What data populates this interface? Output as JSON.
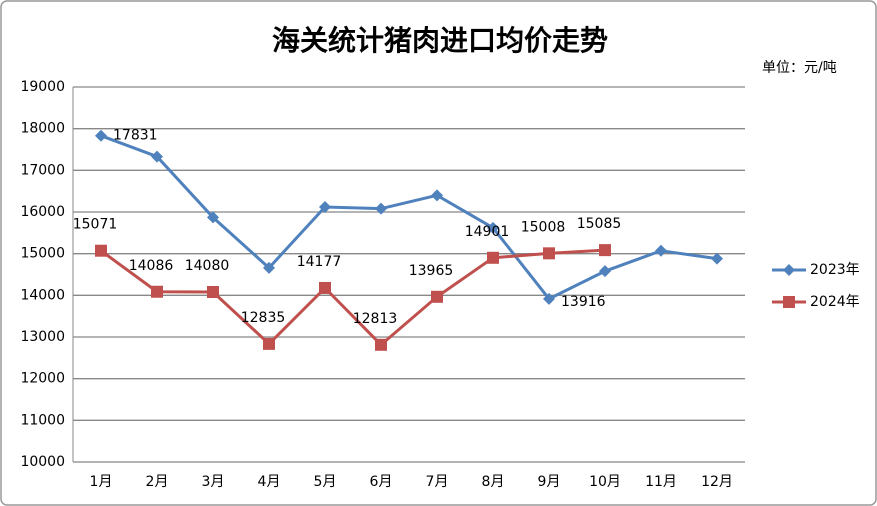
{
  "chart_data": {
    "type": "line",
    "title": "海关统计猪肉进口均价走势",
    "unit_label": "单位：元/吨",
    "categories": [
      "1月",
      "2月",
      "3月",
      "4月",
      "5月",
      "6月",
      "7月",
      "8月",
      "9月",
      "10月",
      "11月",
      "12月"
    ],
    "series": [
      {
        "name": "2023年",
        "color": "#4f81bd",
        "marker": "diamond",
        "values": [
          17831,
          17330,
          15870,
          14660,
          16120,
          16080,
          16400,
          15620,
          13916,
          14580,
          15070,
          14880
        ],
        "value_labels": [
          "17831",
          null,
          null,
          null,
          null,
          null,
          null,
          null,
          "13916",
          null,
          null,
          null
        ]
      },
      {
        "name": "2024年",
        "color": "#c0504d",
        "marker": "square",
        "values": [
          15071,
          14086,
          14080,
          12835,
          14177,
          12813,
          13965,
          14901,
          15008,
          15085,
          null,
          null
        ],
        "value_labels": [
          "15071",
          "14086",
          "14080",
          "12835",
          "14177",
          "12813",
          "13965",
          "14901",
          "15008",
          "15085",
          null,
          null
        ]
      }
    ],
    "ylim": [
      10000,
      19000
    ],
    "yticks": [
      10000,
      11000,
      12000,
      13000,
      14000,
      15000,
      16000,
      17000,
      18000,
      19000
    ],
    "grid": true,
    "legend": "right"
  }
}
